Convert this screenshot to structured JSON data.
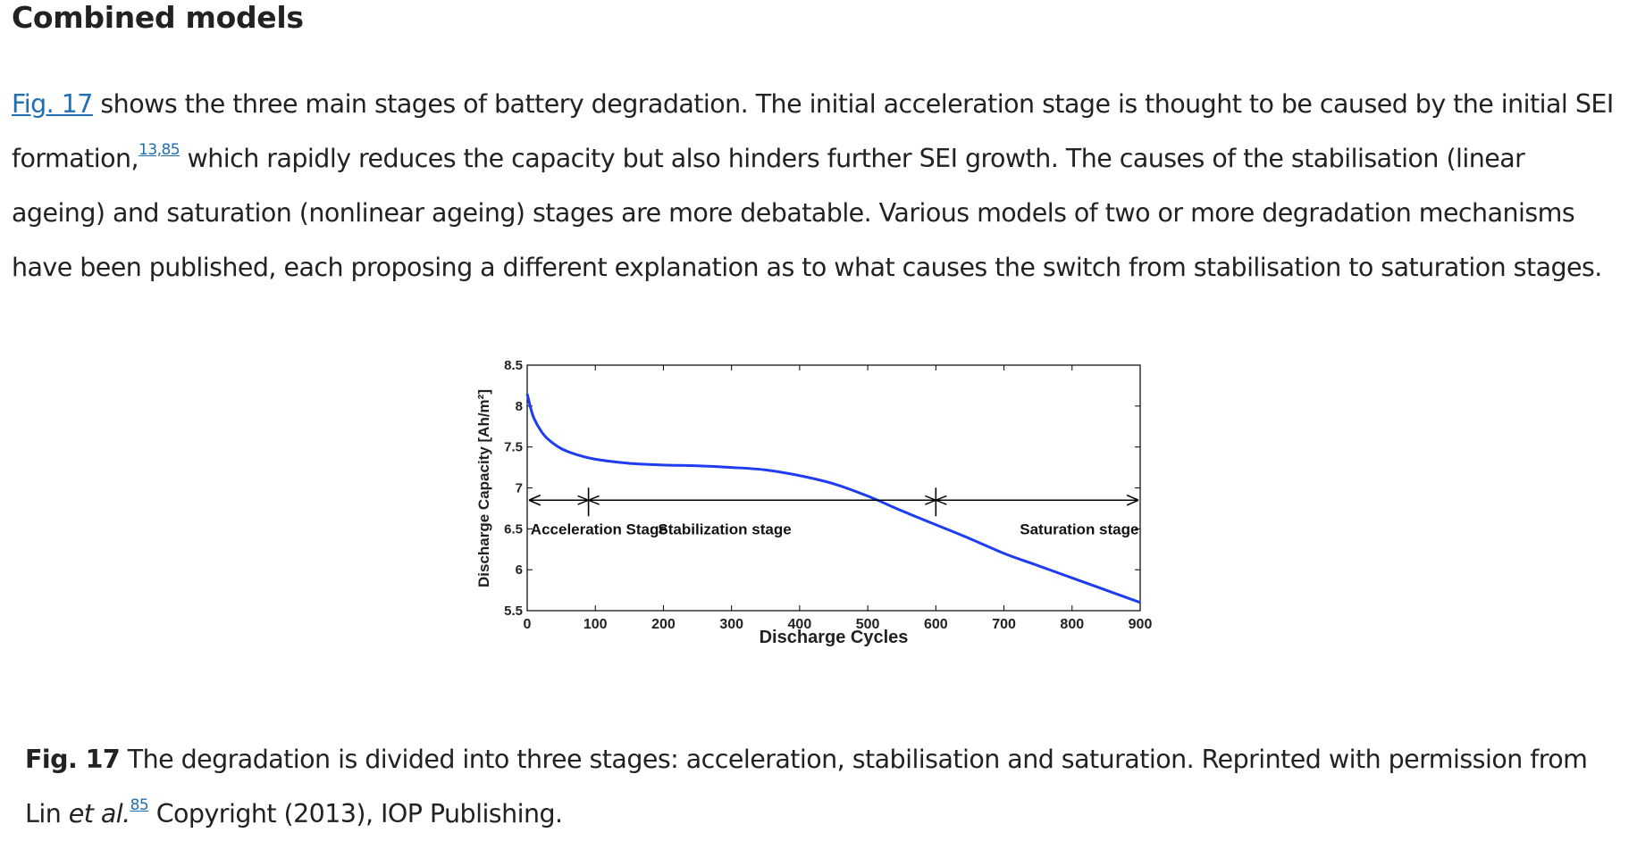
{
  "section": {
    "title": "Combined models"
  },
  "paragraph": {
    "fig_link": "Fig. 17",
    "t1": " shows the three main stages of battery degradation. The initial acceleration stage is thought to be caused by the initial SEI formation,",
    "ref1": "13,85",
    "t2": " which rapidly reduces the capacity but also hinders further SEI growth. The causes of the stabilisation (linear ageing) and saturation (nonlinear ageing) stages are more debatable. Various models of two or more degradation mechanisms have been published, each proposing a different explanation as to what causes the switch from stabilisation to saturation stages."
  },
  "caption": {
    "label": "Fig. 17",
    "text": " The degradation is divided into three stages: acceleration, stabilisation and saturation. Reprinted with permission from Lin ",
    "et_al": "et al.",
    "ref": "85",
    "text2": " Copyright (2013), IOP Publishing."
  },
  "chart_data": {
    "type": "line",
    "xlabel": "Discharge Cycles",
    "ylabel": "Discharge Capacity [Ah/m²]",
    "xlim": [
      0,
      900
    ],
    "ylim": [
      5.5,
      8.5
    ],
    "xticks": [
      0,
      100,
      200,
      300,
      400,
      500,
      600,
      700,
      800,
      900
    ],
    "yticks": [
      5.5,
      6,
      6.5,
      7,
      7.5,
      8,
      8.5
    ],
    "ytick_labels": [
      "5.5",
      "6",
      "6.5",
      "7",
      "7.5",
      "8",
      "8.5"
    ],
    "series": [
      {
        "color": "#1f3cf0",
        "x": [
          0,
          5,
          10,
          20,
          30,
          50,
          75,
          100,
          150,
          200,
          250,
          300,
          350,
          400,
          450,
          500,
          550,
          600,
          650,
          700,
          750,
          800,
          850,
          900
        ],
        "y": [
          8.15,
          7.98,
          7.85,
          7.7,
          7.6,
          7.48,
          7.4,
          7.35,
          7.3,
          7.28,
          7.27,
          7.25,
          7.22,
          7.15,
          7.05,
          6.9,
          6.72,
          6.55,
          6.38,
          6.2,
          6.05,
          5.9,
          5.75,
          5.6
        ]
      }
    ],
    "stages": [
      {
        "label": "Acceleration Stage",
        "from": 0,
        "to": 90
      },
      {
        "label": "Stabilization stage",
        "from": 90,
        "to": 600
      },
      {
        "label": "Saturation stage",
        "from": 600,
        "to": 900
      }
    ],
    "arrow_y": 6.85,
    "grid": false
  }
}
